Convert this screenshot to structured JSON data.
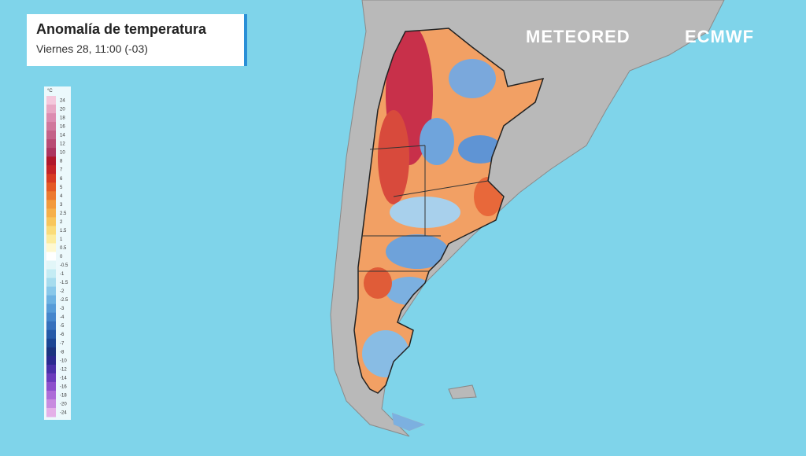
{
  "header": {
    "title": "Anomalía de temperatura",
    "subtitle": "Viernes 28, 11:00 (-03)"
  },
  "logos": {
    "meteored": "METEORED",
    "ecmwf": "ECMWF"
  },
  "legend": {
    "unit": "°C",
    "ticks": [
      24,
      20,
      18,
      16,
      14,
      12,
      10,
      8,
      7,
      6,
      5,
      4,
      3,
      2.5,
      2,
      1.5,
      1,
      0.5,
      0,
      -0.5,
      -1,
      -1.5,
      -2,
      -2.5,
      -3,
      -4,
      -5,
      -6,
      -7,
      -8,
      -10,
      -12,
      -14,
      -16,
      -18,
      -20,
      -24
    ],
    "colors": [
      "#f4c8dc",
      "#e8a8c4",
      "#dc8cb0",
      "#d0789c",
      "#c46288",
      "#b84c74",
      "#ac3660",
      "#b0182c",
      "#c42428",
      "#d83c24",
      "#e45a26",
      "#ec7a30",
      "#f29a3c",
      "#f6b04a",
      "#f8c65c",
      "#fadc7a",
      "#fcec9e",
      "#fef8d0",
      "#ffffff",
      "#e2f6f8",
      "#c4ecf4",
      "#a6dcee",
      "#88c8ea",
      "#6cb2e2",
      "#569cd8",
      "#4486cc",
      "#3470bc",
      "#245aa8",
      "#1a4694",
      "#1a3480",
      "#2a2a90",
      "#4830a8",
      "#6a3cbc",
      "#8c50cc",
      "#ac6cd8",
      "#c88ce0",
      "#e4b0e8"
    ]
  }
}
